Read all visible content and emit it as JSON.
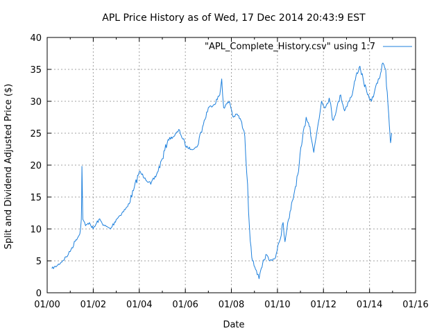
{
  "chart_data": {
    "type": "line",
    "title": "APL Price History as of Wed, 17 Dec 2014 20:43:9 EST",
    "xlabel": "Date",
    "ylabel": "Split and Dividend Adjusted Price ($)",
    "x_is_date": true,
    "xlim": [
      "2000-01-01",
      "2016-01-01"
    ],
    "ylim": [
      0,
      40
    ],
    "x_ticks": [
      "01/00",
      "01/02",
      "01/04",
      "01/06",
      "01/08",
      "01/10",
      "01/12",
      "01/14",
      "01/16"
    ],
    "y_ticks": [
      "0",
      "5",
      "10",
      "15",
      "20",
      "25",
      "30",
      "35",
      "40"
    ],
    "grid": true,
    "legend_position": "top-right",
    "series": [
      {
        "name": "\"APL_Complete_History.csv\" using 1:7",
        "color": "#1c7fdc",
        "points": [
          [
            "2000-03-15",
            3.8
          ],
          [
            "2000-06-01",
            4.2
          ],
          [
            "2000-09-01",
            5.0
          ],
          [
            "2000-12-01",
            6.0
          ],
          [
            "2001-01-15",
            6.8
          ],
          [
            "2001-04-01",
            8.3
          ],
          [
            "2001-06-01",
            9.2
          ],
          [
            "2001-06-25",
            11.5
          ],
          [
            "2001-07-01",
            14.5
          ],
          [
            "2001-07-05",
            19.8
          ],
          [
            "2001-07-12",
            16.0
          ],
          [
            "2001-07-20",
            11.5
          ],
          [
            "2001-09-01",
            10.5
          ],
          [
            "2001-11-01",
            11.0
          ],
          [
            "2002-01-01",
            10.0
          ],
          [
            "2002-04-01",
            11.5
          ],
          [
            "2002-07-01",
            10.5
          ],
          [
            "2002-10-01",
            10.0
          ],
          [
            "2003-01-01",
            11.5
          ],
          [
            "2003-04-01",
            12.5
          ],
          [
            "2003-07-01",
            13.5
          ],
          [
            "2003-10-01",
            16.0
          ],
          [
            "2004-01-01",
            19.0
          ],
          [
            "2004-04-01",
            18.0
          ],
          [
            "2004-07-01",
            17.0
          ],
          [
            "2004-10-01",
            18.5
          ],
          [
            "2005-01-01",
            21.0
          ],
          [
            "2005-04-01",
            24.0
          ],
          [
            "2005-07-01",
            24.5
          ],
          [
            "2005-10-01",
            25.5
          ],
          [
            "2006-01-01",
            23.0
          ],
          [
            "2006-04-01",
            22.5
          ],
          [
            "2006-07-01",
            22.8
          ],
          [
            "2006-10-01",
            26.0
          ],
          [
            "2007-01-01",
            29.0
          ],
          [
            "2007-04-01",
            29.5
          ],
          [
            "2007-07-01",
            31.0
          ],
          [
            "2007-08-01",
            33.5
          ],
          [
            "2007-09-01",
            29.0
          ],
          [
            "2007-12-01",
            30.0
          ],
          [
            "2008-02-01",
            27.5
          ],
          [
            "2008-04-01",
            28.0
          ],
          [
            "2008-06-01",
            27.0
          ],
          [
            "2008-08-01",
            24.5
          ],
          [
            "2008-09-15",
            17.0
          ],
          [
            "2008-10-15",
            10.0
          ],
          [
            "2008-12-01",
            5.0
          ],
          [
            "2009-02-01",
            3.5
          ],
          [
            "2009-03-15",
            2.2
          ],
          [
            "2009-05-01",
            4.0
          ],
          [
            "2009-07-01",
            6.0
          ],
          [
            "2009-09-01",
            5.0
          ],
          [
            "2009-12-01",
            5.5
          ],
          [
            "2010-02-01",
            8.0
          ],
          [
            "2010-04-01",
            11.0
          ],
          [
            "2010-05-01",
            8.0
          ],
          [
            "2010-06-01",
            10.0
          ],
          [
            "2010-08-01",
            13.0
          ],
          [
            "2010-10-01",
            16.0
          ],
          [
            "2010-12-01",
            19.0
          ],
          [
            "2011-02-01",
            24.0
          ],
          [
            "2011-04-01",
            27.5
          ],
          [
            "2011-06-01",
            26.0
          ],
          [
            "2011-08-01",
            22.0
          ],
          [
            "2011-10-01",
            26.0
          ],
          [
            "2011-12-01",
            30.0
          ],
          [
            "2012-02-01",
            29.0
          ],
          [
            "2012-04-01",
            30.5
          ],
          [
            "2012-06-01",
            27.0
          ],
          [
            "2012-08-01",
            29.0
          ],
          [
            "2012-10-01",
            31.0
          ],
          [
            "2012-12-01",
            28.5
          ],
          [
            "2013-02-01",
            30.0
          ],
          [
            "2013-04-01",
            31.0
          ],
          [
            "2013-06-01",
            34.0
          ],
          [
            "2013-08-01",
            35.5
          ],
          [
            "2013-10-01",
            33.0
          ],
          [
            "2013-12-01",
            31.0
          ],
          [
            "2014-02-01",
            30.0
          ],
          [
            "2014-04-01",
            32.0
          ],
          [
            "2014-06-01",
            33.5
          ],
          [
            "2014-08-01",
            36.0
          ],
          [
            "2014-09-15",
            35.0
          ],
          [
            "2014-11-01",
            28.0
          ],
          [
            "2014-11-20",
            25.0
          ],
          [
            "2014-12-01",
            23.5
          ],
          [
            "2014-12-17",
            25.0
          ]
        ]
      }
    ]
  }
}
